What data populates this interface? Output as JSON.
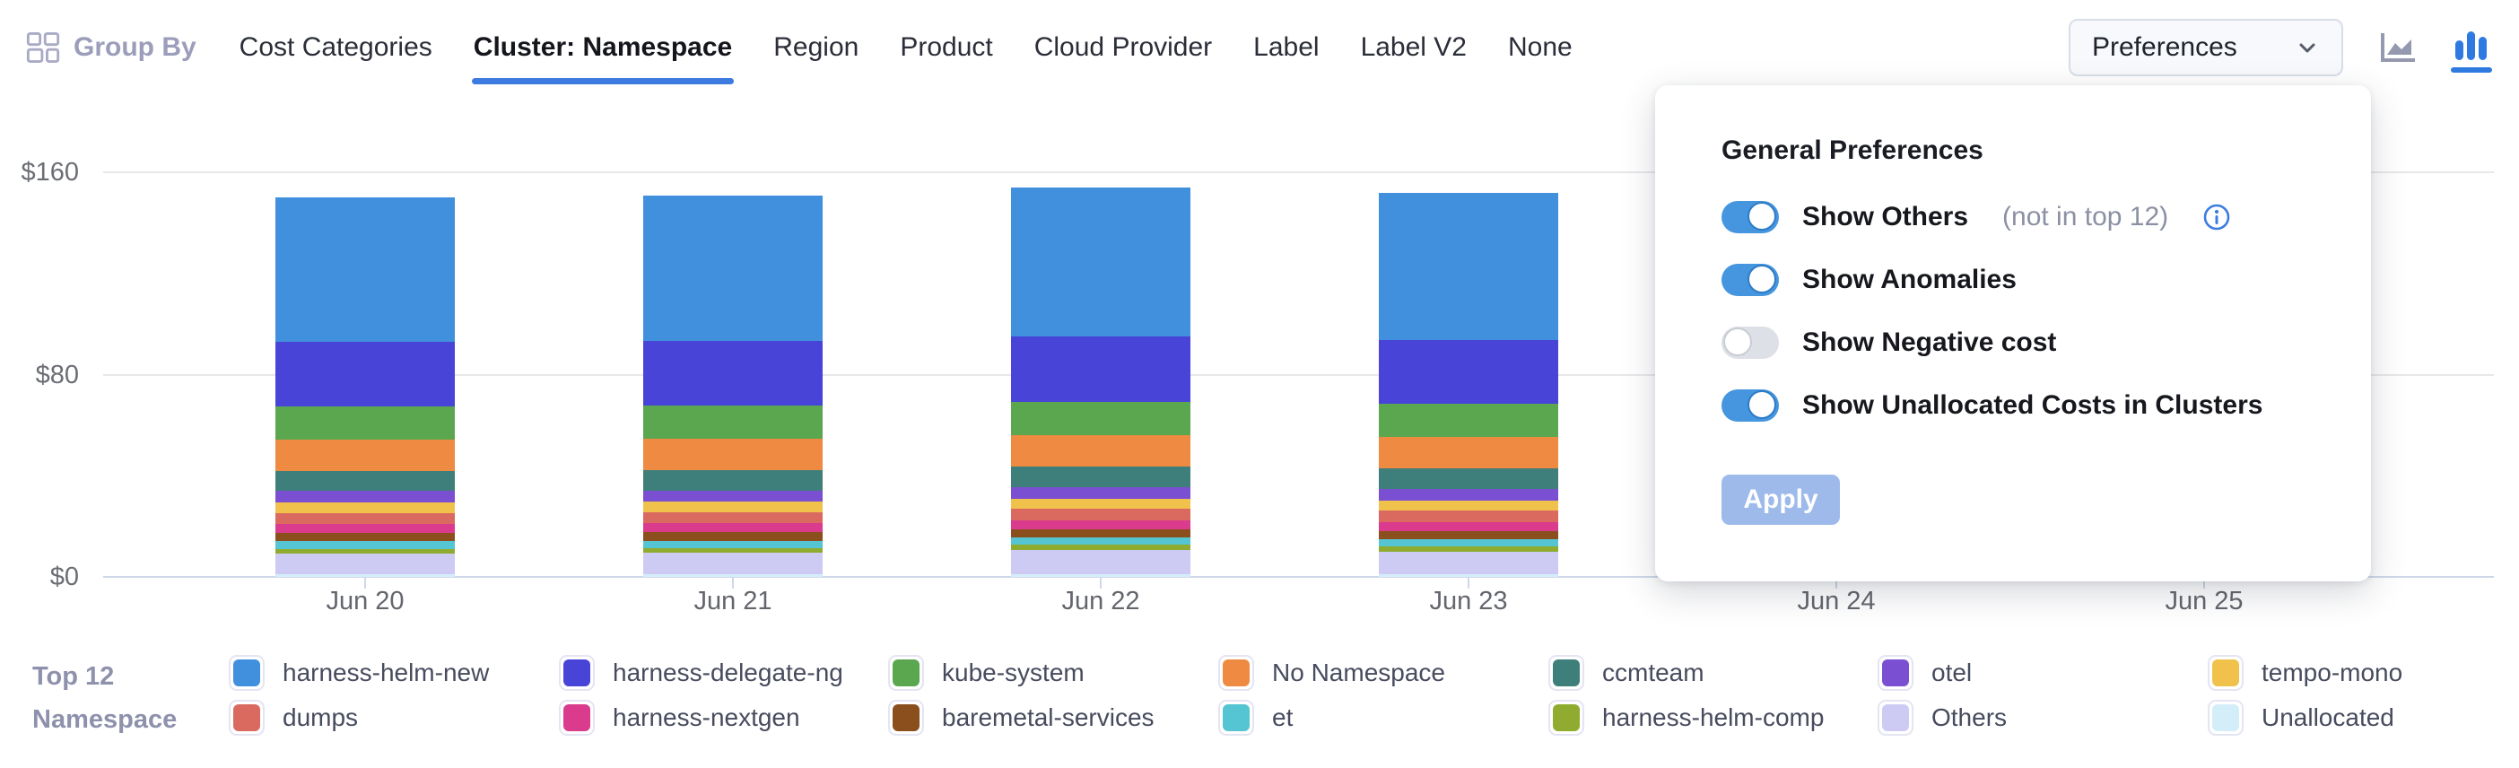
{
  "header": {
    "group_by_label": "Group By",
    "tabs": [
      {
        "label": "Cost Categories",
        "active": false
      },
      {
        "label": "Cluster: Namespace",
        "active": true
      },
      {
        "label": "Region",
        "active": false
      },
      {
        "label": "Product",
        "active": false
      },
      {
        "label": "Cloud Provider",
        "active": false
      },
      {
        "label": "Label",
        "active": false
      },
      {
        "label": "Label V2",
        "active": false
      },
      {
        "label": "None",
        "active": false
      }
    ],
    "preferences_button": {
      "label": "Preferences"
    },
    "chart_type_toggle": {
      "area_chart_active": false,
      "bar_chart_active": true,
      "active_color": "#2F7AE0",
      "inactive_color": "#9599AF"
    }
  },
  "popover": {
    "title": "General Preferences",
    "toggles": [
      {
        "label": "Show Others",
        "suffix": "(not in top 12)",
        "info_icon": true,
        "on": true
      },
      {
        "label": "Show Anomalies",
        "suffix": "",
        "info_icon": false,
        "on": true
      },
      {
        "label": "Show Negative cost",
        "suffix": "",
        "info_icon": false,
        "on": false
      },
      {
        "label": "Show Unallocated Costs in Clusters",
        "suffix": "",
        "info_icon": false,
        "on": true
      }
    ],
    "apply_label": "Apply",
    "toggle_on_color": "#4596DE"
  },
  "legend": {
    "title_line1": "Top 12",
    "title_line2": "Namespace"
  },
  "chart_data": {
    "type": "bar",
    "stacked": true,
    "title": "",
    "xlabel": "",
    "ylabel": "",
    "ylim": [
      0,
      160
    ],
    "y_ticks": [
      {
        "label": "$0",
        "value": 0
      },
      {
        "label": "$80",
        "value": 80
      },
      {
        "label": "$160",
        "value": 160
      }
    ],
    "grid": true,
    "legend_position": "bottom",
    "categories": [
      "Jun 20",
      "Jun 21",
      "Jun 22",
      "Jun 23",
      "Jun 24",
      "Jun 25"
    ],
    "note": "Jun 24 and Jun 25 columns are hidden behind the open preferences popover",
    "series": [
      {
        "name": "harness-helm-new",
        "color": "#4190DD",
        "values": [
          57,
          57.5,
          59,
          58,
          null,
          null
        ]
      },
      {
        "name": "harness-delegate-ng",
        "color": "#4844D8",
        "values": [
          25.5,
          25.5,
          26,
          25.5,
          null,
          null
        ]
      },
      {
        "name": "kube-system",
        "color": "#5AA750",
        "values": [
          13,
          13,
          13,
          13,
          null,
          null
        ]
      },
      {
        "name": "No Namespace",
        "color": "#EE8A41",
        "values": [
          12.5,
          12.5,
          12.5,
          12.5,
          null,
          null
        ]
      },
      {
        "name": "ccmteam",
        "color": "#3F7F7B",
        "values": [
          8,
          8,
          8,
          8,
          null,
          null
        ]
      },
      {
        "name": "otel",
        "color": "#7A4FD2",
        "values": [
          4.5,
          4.5,
          4.5,
          4.5,
          null,
          null
        ]
      },
      {
        "name": "tempo-mono",
        "color": "#F0C24B",
        "values": [
          4.2,
          4.2,
          4.2,
          4.2,
          null,
          null
        ]
      },
      {
        "name": "dumps",
        "color": "#DA6960",
        "values": [
          4.3,
          4.3,
          4.3,
          4.3,
          null,
          null
        ]
      },
      {
        "name": "harness-nextgen",
        "color": "#DA3B8D",
        "values": [
          3.6,
          3.6,
          3.6,
          3.6,
          null,
          null
        ]
      },
      {
        "name": "baremetal-services",
        "color": "#8B4E1D",
        "values": [
          3.3,
          3.3,
          3.3,
          3.3,
          null,
          null
        ]
      },
      {
        "name": "et",
        "color": "#55C4D3",
        "values": [
          2.9,
          2.9,
          2.9,
          2.9,
          null,
          null
        ]
      },
      {
        "name": "harness-helm-comp",
        "color": "#90AC30",
        "values": [
          1.9,
          1.9,
          2.2,
          2.0,
          null,
          null
        ]
      },
      {
        "name": "Others",
        "color": "#CDCBF4",
        "values": [
          8.0,
          8.3,
          9.3,
          8.8,
          null,
          null
        ]
      },
      {
        "name": "Unallocated",
        "color": "#D4EEF9",
        "values": [
          1.2,
          1.2,
          1.2,
          1.2,
          null,
          null
        ]
      }
    ]
  }
}
